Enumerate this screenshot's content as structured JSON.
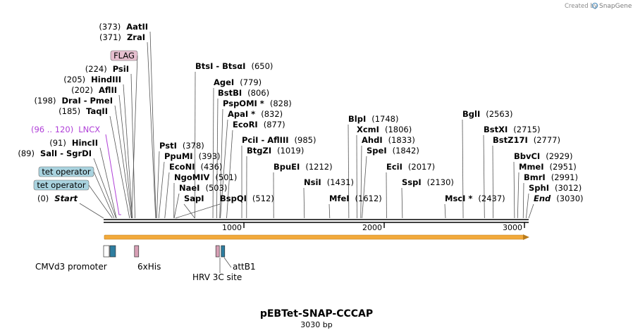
{
  "credit": {
    "prefix": "Created by",
    "brand": "SnapGene"
  },
  "plasmid": {
    "name": "pEBTet-SNAP-CCCAP",
    "length_label": "3030 bp",
    "length": 3030
  },
  "axis_ticks": [
    {
      "pos": 1000,
      "label": "1000"
    },
    {
      "pos": 2000,
      "label": "2000"
    },
    {
      "pos": 3000,
      "label": "3000"
    }
  ],
  "sites": [
    {
      "name": "AatII",
      "pos_text": "(373)",
      "site": 373,
      "pos_first": true
    },
    {
      "name": "ZraI",
      "pos_text": "(371)",
      "site": 371,
      "pos_first": true
    },
    {
      "name": "PsiI",
      "pos_text": "(224)",
      "site": 224,
      "pos_first": true
    },
    {
      "name": "HindIII",
      "pos_text": "(205)",
      "site": 205,
      "pos_first": true
    },
    {
      "name": "AflII",
      "pos_text": "(202)",
      "site": 202,
      "pos_first": true
    },
    {
      "name": "DraI  -  PmeI",
      "pos_text": "(198)",
      "site": 198,
      "pos_first": true
    },
    {
      "name": "TaqII",
      "pos_text": "(185)",
      "site": 185,
      "pos_first": true
    },
    {
      "name": "HincII",
      "pos_text": "(91)",
      "site": 91,
      "pos_first": true
    },
    {
      "name": "SalI  -  SgrDI",
      "pos_text": "(89)",
      "site": 89,
      "pos_first": true
    },
    {
      "name": "Start",
      "pos_text": "(0)",
      "site": 0,
      "pos_first": true,
      "italic": true
    },
    {
      "name": "BtsI  -  BtsαI",
      "pos_text": "(650)",
      "site": 650
    },
    {
      "name": "AgeI",
      "pos_text": "(779)",
      "site": 779
    },
    {
      "name": "BstBI",
      "pos_text": "(806)",
      "site": 806
    },
    {
      "name": "PspOMI *",
      "pos_text": "(828)",
      "site": 828
    },
    {
      "name": "ApaI *",
      "pos_text": "(832)",
      "site": 832
    },
    {
      "name": "EcoRI",
      "pos_text": "(877)",
      "site": 877
    },
    {
      "name": "PciI  -  AflIII",
      "pos_text": "(985)",
      "site": 985
    },
    {
      "name": "BtgZI",
      "pos_text": "(1019)",
      "site": 1019
    },
    {
      "name": "PstI",
      "pos_text": "(378)",
      "site": 378
    },
    {
      "name": "PpuMI",
      "pos_text": "(393)",
      "site": 393
    },
    {
      "name": "EcoNI",
      "pos_text": "(436)",
      "site": 436
    },
    {
      "name": "NgoMIV",
      "pos_text": "(501)",
      "site": 501
    },
    {
      "name": "NaeI",
      "pos_text": "(503)",
      "site": 503
    },
    {
      "name": "SapI",
      "pos_text": "",
      "site": 650
    },
    {
      "name": "BspQI",
      "pos_text": "(512)",
      "site": 512
    },
    {
      "name": "BpuEI",
      "pos_text": "(1212)",
      "site": 1212
    },
    {
      "name": "NsiI",
      "pos_text": "(1431)",
      "site": 1431
    },
    {
      "name": "MfeI",
      "pos_text": "(1612)",
      "site": 1612
    },
    {
      "name": "BlpI",
      "pos_text": "(1748)",
      "site": 1748
    },
    {
      "name": "XcmI",
      "pos_text": "(1806)",
      "site": 1806
    },
    {
      "name": "AhdI",
      "pos_text": "(1833)",
      "site": 1833
    },
    {
      "name": "SpeI",
      "pos_text": "(1842)",
      "site": 1842
    },
    {
      "name": "EciI",
      "pos_text": "(2017)",
      "site": 2017
    },
    {
      "name": "SspI",
      "pos_text": "(2130)",
      "site": 2130
    },
    {
      "name": "BglI",
      "pos_text": "(2563)",
      "site": 2563
    },
    {
      "name": "BstXI",
      "pos_text": "(2715)",
      "site": 2715
    },
    {
      "name": "BstZ17I",
      "pos_text": "(2777)",
      "site": 2777
    },
    {
      "name": "MscI *",
      "pos_text": "(2437)",
      "site": 2437
    },
    {
      "name": "BbvCI",
      "pos_text": "(2929)",
      "site": 2929
    },
    {
      "name": "MmeI",
      "pos_text": "(2951)",
      "site": 2951
    },
    {
      "name": "BmrI",
      "pos_text": "(2991)",
      "site": 2991
    },
    {
      "name": "SphI",
      "pos_text": "(3012)",
      "site": 3012
    },
    {
      "name": "End",
      "pos_text": "(3030)",
      "site": 3030,
      "italic": true
    }
  ],
  "boxed_labels": [
    {
      "text": "FLAG",
      "site": 200,
      "color": "#e6bfcf"
    },
    {
      "text": "tet operator",
      "site": 75,
      "color": "#a9d3df"
    },
    {
      "text": "tet operator",
      "site": 62,
      "color": "#a9d3df"
    }
  ],
  "primer": {
    "pos_text": "(96 .. 120)",
    "name": "LNCX",
    "color": "#b03fd8",
    "site": 100
  },
  "features": [
    {
      "label": "CMVd3 promoter",
      "start": 0,
      "end": 40,
      "color": "#ffffff"
    },
    {
      "label": "tet operator",
      "start": 45,
      "end": 85,
      "color": "#2e7ea0"
    },
    {
      "label": "6xHis",
      "start": 220,
      "end": 250,
      "color": "#d79fb5"
    },
    {
      "label": "HRV 3C site",
      "start": 800,
      "end": 825,
      "color": "#d79fb5"
    },
    {
      "label": "attB1",
      "start": 838,
      "end": 860,
      "color": "#2e7ea0"
    }
  ],
  "arrow": {
    "start": 0,
    "end": 3030,
    "color": "#f2a93b"
  }
}
